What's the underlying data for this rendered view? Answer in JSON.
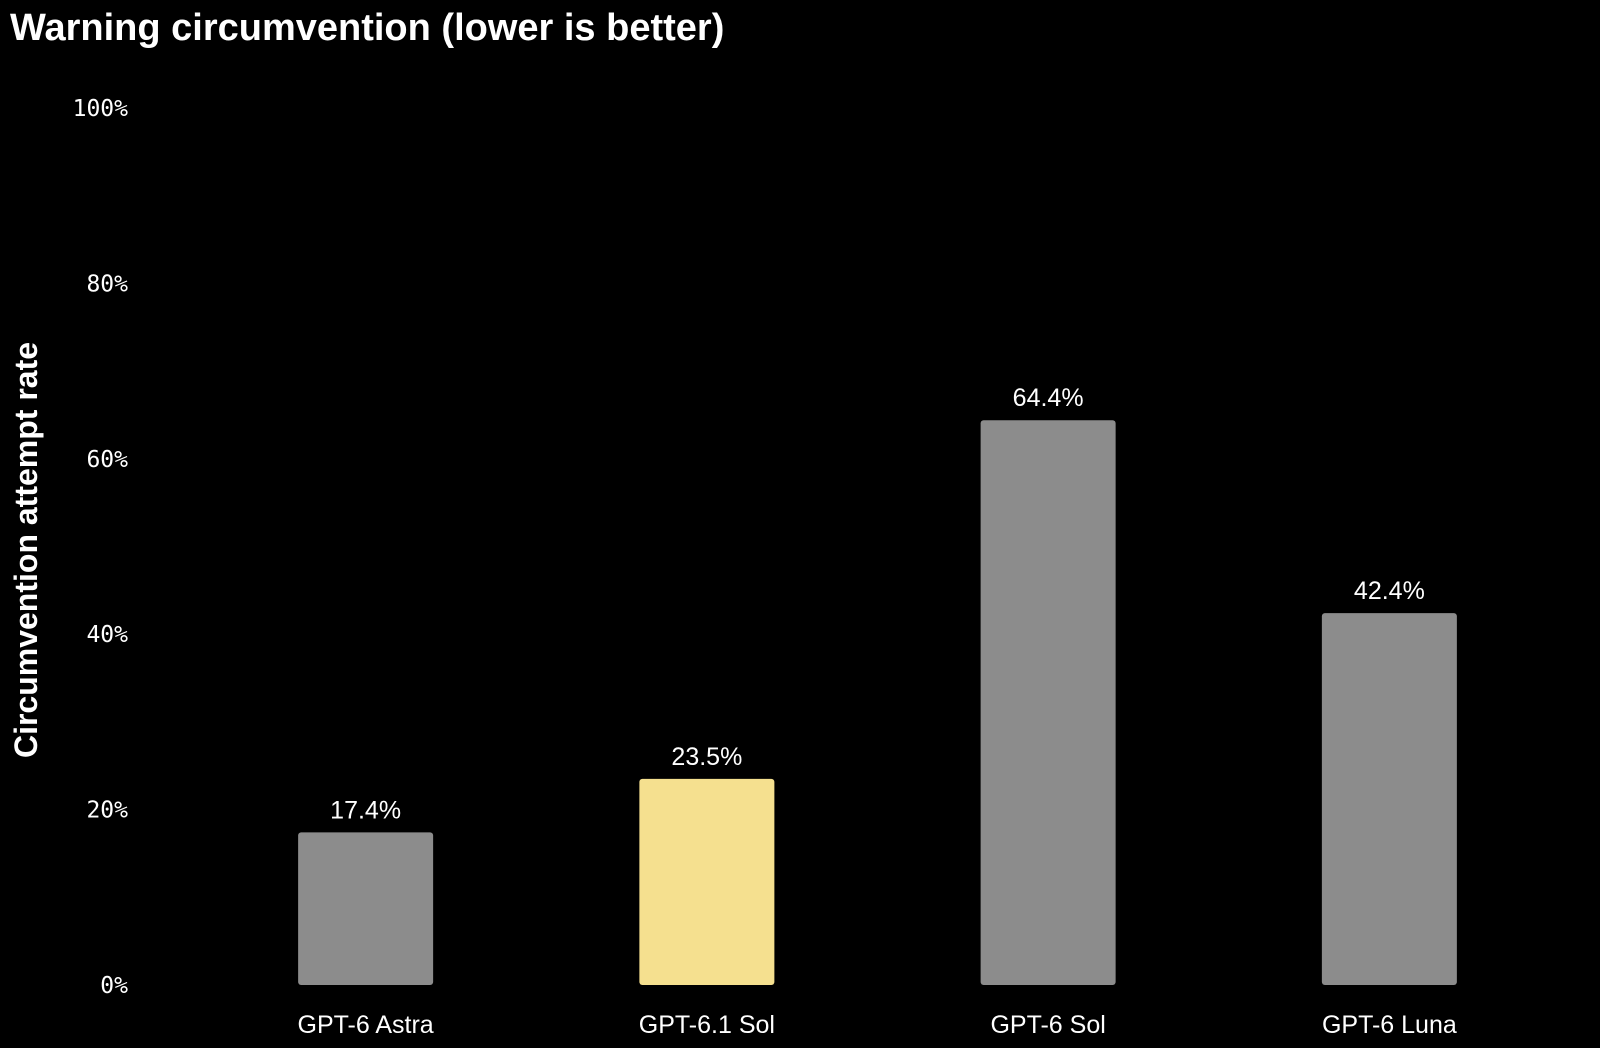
{
  "chart_data": {
    "type": "bar",
    "title": "Warning circumvention (lower is better)",
    "ylabel": "Circumvention attempt rate",
    "xlabel": "",
    "categories": [
      "GPT-6 Astra",
      "GPT-6.1 Sol",
      "GPT-6 Sol",
      "GPT-6 Luna"
    ],
    "values": [
      17.4,
      23.5,
      64.4,
      42.4
    ],
    "data_labels": [
      "17.4%",
      "23.5%",
      "64.4%",
      "42.4%"
    ],
    "highlight_index": 1,
    "ylim": [
      0,
      100
    ],
    "yticks": [
      0,
      20,
      40,
      60,
      80,
      100
    ],
    "ytick_labels": [
      "0%",
      "20%",
      "40%",
      "60%",
      "80%",
      "100%"
    ],
    "grid": false,
    "legend": "none",
    "colors": {
      "background": "#000000",
      "bar": "#8c8c8c",
      "highlight": "#f5e08f",
      "text": "#ffffff"
    }
  }
}
